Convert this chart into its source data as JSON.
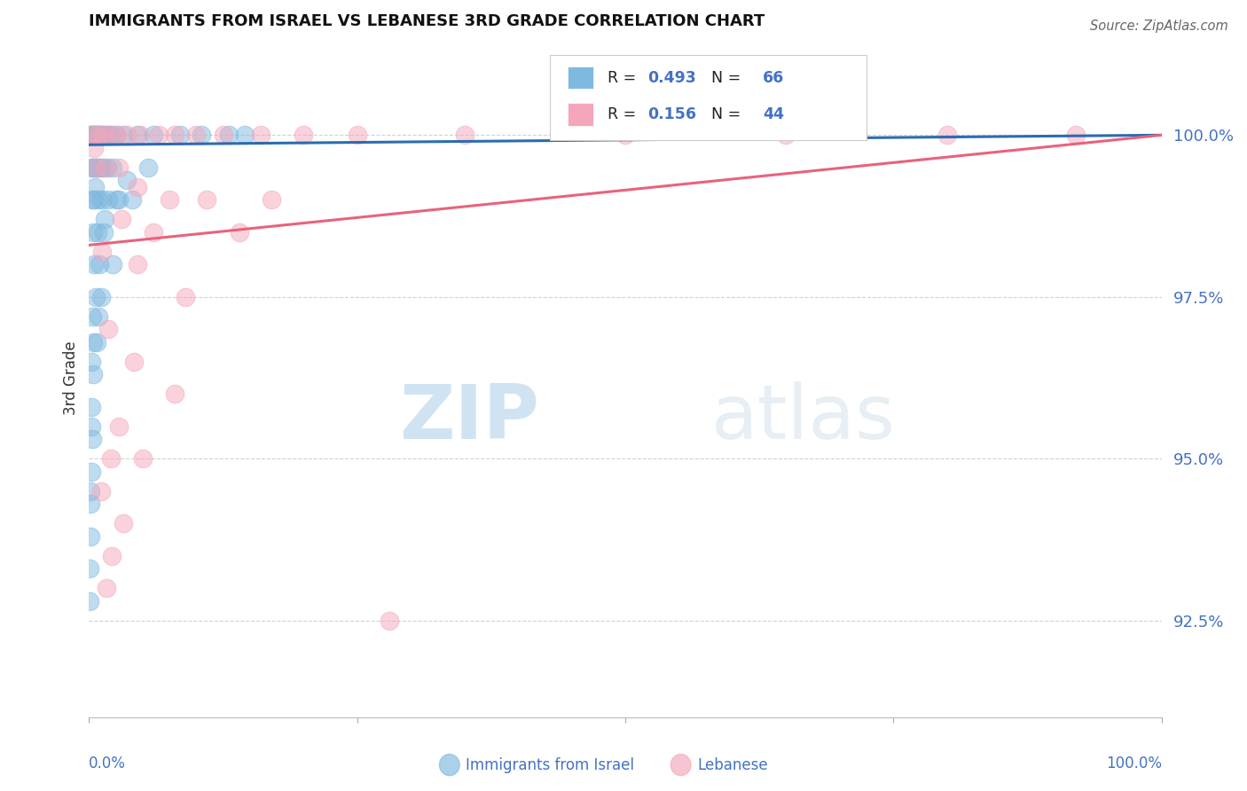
{
  "title": "IMMIGRANTS FROM ISRAEL VS LEBANESE 3RD GRADE CORRELATION CHART",
  "source": "Source: ZipAtlas.com",
  "ylabel": "3rd Grade",
  "yticks": [
    92.5,
    95.0,
    97.5,
    100.0
  ],
  "ytick_labels": [
    "92.5%",
    "95.0%",
    "97.5%",
    "100.0%"
  ],
  "xmin": 0.0,
  "xmax": 100.0,
  "ymin": 91.0,
  "ymax": 101.5,
  "legend_r_blue": "R = 0.493",
  "legend_n_blue": "N = 66",
  "legend_r_pink": "R = 0.156",
  "legend_n_pink": "N = 44",
  "watermark_zip": "ZIP",
  "watermark_atlas": "atlas",
  "blue_color": "#7fb9e0",
  "pink_color": "#f4a7bb",
  "blue_line_color": "#2b6cb0",
  "pink_line_color": "#e8637a",
  "tick_color": "#4472C4",
  "blue_line_x0": 0.0,
  "blue_line_y0": 99.85,
  "blue_line_x1": 100.0,
  "blue_line_y1": 100.0,
  "pink_line_x0": 0.0,
  "pink_line_y0": 98.3,
  "pink_line_x1": 100.0,
  "pink_line_y1": 100.0,
  "blue_scatter": [
    [
      0.15,
      100.0
    ],
    [
      0.25,
      100.0
    ],
    [
      0.35,
      100.0
    ],
    [
      0.45,
      100.0
    ],
    [
      0.55,
      100.0
    ],
    [
      0.65,
      100.0
    ],
    [
      0.75,
      100.0
    ],
    [
      0.85,
      100.0
    ],
    [
      0.95,
      100.0
    ],
    [
      1.05,
      100.0
    ],
    [
      1.2,
      100.0
    ],
    [
      1.4,
      100.0
    ],
    [
      1.6,
      100.0
    ],
    [
      1.8,
      100.0
    ],
    [
      2.0,
      100.0
    ],
    [
      2.5,
      100.0
    ],
    [
      3.2,
      100.0
    ],
    [
      4.5,
      100.0
    ],
    [
      6.0,
      100.0
    ],
    [
      8.5,
      100.0
    ],
    [
      10.5,
      100.0
    ],
    [
      13.0,
      100.0
    ],
    [
      14.5,
      100.0
    ],
    [
      0.2,
      99.5
    ],
    [
      0.4,
      99.5
    ],
    [
      0.6,
      99.5
    ],
    [
      0.8,
      99.5
    ],
    [
      1.0,
      99.5
    ],
    [
      1.3,
      99.5
    ],
    [
      1.7,
      99.5
    ],
    [
      2.2,
      99.5
    ],
    [
      0.3,
      99.0
    ],
    [
      0.5,
      99.0
    ],
    [
      0.9,
      99.0
    ],
    [
      1.2,
      99.0
    ],
    [
      1.8,
      99.0
    ],
    [
      2.5,
      99.0
    ],
    [
      0.4,
      98.5
    ],
    [
      0.8,
      98.5
    ],
    [
      1.4,
      98.5
    ],
    [
      0.5,
      98.0
    ],
    [
      1.0,
      98.0
    ],
    [
      2.2,
      98.0
    ],
    [
      0.6,
      97.5
    ],
    [
      1.1,
      97.5
    ],
    [
      0.3,
      97.2
    ],
    [
      0.9,
      97.2
    ],
    [
      0.35,
      96.8
    ],
    [
      0.7,
      96.8
    ],
    [
      0.4,
      96.3
    ],
    [
      0.25,
      95.8
    ],
    [
      0.3,
      95.3
    ],
    [
      0.2,
      94.8
    ],
    [
      0.15,
      94.3
    ],
    [
      0.1,
      93.8
    ],
    [
      0.08,
      93.3
    ],
    [
      0.07,
      92.8
    ],
    [
      3.5,
      99.3
    ],
    [
      0.55,
      99.2
    ],
    [
      1.5,
      98.7
    ],
    [
      2.8,
      99.0
    ],
    [
      4.0,
      99.0
    ],
    [
      5.5,
      99.5
    ],
    [
      0.18,
      96.5
    ],
    [
      0.22,
      95.5
    ],
    [
      0.12,
      94.5
    ]
  ],
  "pink_scatter": [
    [
      0.4,
      100.0
    ],
    [
      0.8,
      100.0
    ],
    [
      1.3,
      100.0
    ],
    [
      1.9,
      100.0
    ],
    [
      2.6,
      100.0
    ],
    [
      3.5,
      100.0
    ],
    [
      4.8,
      100.0
    ],
    [
      6.5,
      100.0
    ],
    [
      8.0,
      100.0
    ],
    [
      10.0,
      100.0
    ],
    [
      12.5,
      100.0
    ],
    [
      16.0,
      100.0
    ],
    [
      20.0,
      100.0
    ],
    [
      25.0,
      100.0
    ],
    [
      35.0,
      100.0
    ],
    [
      50.0,
      100.0
    ],
    [
      65.0,
      100.0
    ],
    [
      80.0,
      100.0
    ],
    [
      92.0,
      100.0
    ],
    [
      0.7,
      99.5
    ],
    [
      1.5,
      99.5
    ],
    [
      2.8,
      99.5
    ],
    [
      4.5,
      99.2
    ],
    [
      7.5,
      99.0
    ],
    [
      11.0,
      99.0
    ],
    [
      17.0,
      99.0
    ],
    [
      3.0,
      98.7
    ],
    [
      6.0,
      98.5
    ],
    [
      14.0,
      98.5
    ],
    [
      1.2,
      98.2
    ],
    [
      4.5,
      98.0
    ],
    [
      9.0,
      97.5
    ],
    [
      1.8,
      97.0
    ],
    [
      4.2,
      96.5
    ],
    [
      8.0,
      96.0
    ],
    [
      2.8,
      95.5
    ],
    [
      2.0,
      95.0
    ],
    [
      5.0,
      95.0
    ],
    [
      1.1,
      94.5
    ],
    [
      3.2,
      94.0
    ],
    [
      2.1,
      93.5
    ],
    [
      1.6,
      93.0
    ],
    [
      28.0,
      92.5
    ],
    [
      0.5,
      99.8
    ]
  ]
}
